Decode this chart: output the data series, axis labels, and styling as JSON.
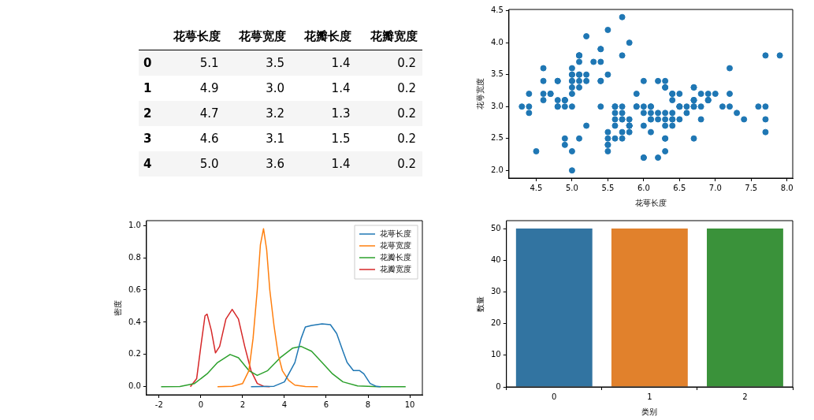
{
  "chart_data": [
    {
      "type": "heatmap",
      "categories": [
        "花萼长度",
        "花萼宽度",
        "花瓣长度",
        "花瓣宽度"
      ],
      "y_categories": [
        "0",
        "1",
        "2",
        "3",
        "4"
      ],
      "cells": [
        [
          5.1,
          3.5,
          1.4,
          0.2
        ],
        [
          4.9,
          3.0,
          1.4,
          0.2
        ],
        [
          4.7,
          3.2,
          1.3,
          0.2
        ],
        [
          4.6,
          3.1,
          1.5,
          0.2
        ],
        [
          5.0,
          3.6,
          1.4,
          0.2
        ]
      ],
      "cell_labels": [
        [
          "5.1",
          "3.5",
          "1.4",
          "0.2"
        ],
        [
          "4.9",
          "3.0",
          "1.4",
          "0.2"
        ],
        [
          "4.7",
          "3.2",
          "1.3",
          "0.2"
        ],
        [
          "4.6",
          "3.1",
          "1.5",
          "0.2"
        ],
        [
          "5.0",
          "3.6",
          "1.4",
          "0.2"
        ]
      ],
      "data_labels": true
    },
    {
      "type": "scatter",
      "xlabel": "花萼长度",
      "ylabel": "花萼宽度",
      "marker": "circle",
      "grid": false,
      "legend": false,
      "xlim": [
        4.12,
        8.08
      ],
      "ylim": [
        1.88,
        4.52
      ],
      "xticks": [
        {
          "value": 4.5,
          "label": "4.5"
        },
        {
          "value": 5,
          "label": "5.0"
        },
        {
          "value": 5.5,
          "label": "5.5"
        },
        {
          "value": 6,
          "label": "6.0"
        },
        {
          "value": 6.5,
          "label": "6.5"
        },
        {
          "value": 7,
          "label": "7.0"
        },
        {
          "value": 7.5,
          "label": "7.5"
        },
        {
          "value": 8,
          "label": "8.0"
        }
      ],
      "yticks": [
        {
          "value": 2,
          "label": "2.0"
        },
        {
          "value": 2.5,
          "label": "2.5"
        },
        {
          "value": 3,
          "label": "3.0"
        },
        {
          "value": 3.5,
          "label": "3.5"
        },
        {
          "value": 4,
          "label": "4.0"
        },
        {
          "value": 4.5,
          "label": "4.5"
        }
      ],
      "series": [
        {
          "color": "#1f77b4",
          "x": [
            5.1,
            4.9,
            4.7,
            4.6,
            5.0,
            5.4,
            4.6,
            5.0,
            4.4,
            4.9,
            5.4,
            4.8,
            4.8,
            4.3,
            5.8,
            5.7,
            5.4,
            5.1,
            5.7,
            5.1,
            5.4,
            5.1,
            4.6,
            5.1,
            4.8,
            5.0,
            5.0,
            5.2,
            5.2,
            4.7,
            4.8,
            5.4,
            5.2,
            5.5,
            4.9,
            5.0,
            5.5,
            4.9,
            4.4,
            5.1,
            5.0,
            4.5,
            4.4,
            5.0,
            5.1,
            4.8,
            5.1,
            4.6,
            5.3,
            5.0,
            7.0,
            6.4,
            6.9,
            5.5,
            6.5,
            5.7,
            6.3,
            4.9,
            6.6,
            5.2,
            5.0,
            5.9,
            6.0,
            6.1,
            5.6,
            6.7,
            5.6,
            5.8,
            6.2,
            5.6,
            5.9,
            6.1,
            6.3,
            6.1,
            6.4,
            6.6,
            6.8,
            6.7,
            6.0,
            5.7,
            5.5,
            5.5,
            5.8,
            6.0,
            5.4,
            6.0,
            6.7,
            6.3,
            5.6,
            5.5,
            5.5,
            6.1,
            5.8,
            5.0,
            5.6,
            5.7,
            5.7,
            6.2,
            5.1,
            5.7,
            6.3,
            5.8,
            7.1,
            6.3,
            6.5,
            7.6,
            4.9,
            7.3,
            6.7,
            7.2,
            6.5,
            6.4,
            6.8,
            5.7,
            5.8,
            6.4,
            6.5,
            7.7,
            7.7,
            6.0,
            6.9,
            5.6,
            7.7,
            6.3,
            6.7,
            7.2,
            6.2,
            6.1,
            6.4,
            7.2,
            7.4,
            7.9,
            6.4,
            6.3,
            6.1,
            7.7,
            6.3,
            6.4,
            6.0,
            6.9,
            6.7,
            6.9,
            5.8,
            6.8,
            6.7,
            6.7,
            6.3,
            6.5,
            6.2,
            5.9
          ],
          "values": [
            3.5,
            3.0,
            3.2,
            3.1,
            3.6,
            3.9,
            3.4,
            3.4,
            2.9,
            3.1,
            3.7,
            3.4,
            3.0,
            3.0,
            4.0,
            4.4,
            3.9,
            3.5,
            3.8,
            3.8,
            3.4,
            3.7,
            3.6,
            3.3,
            3.4,
            3.0,
            3.4,
            3.5,
            3.4,
            3.2,
            3.1,
            3.4,
            4.1,
            4.2,
            3.1,
            3.2,
            3.5,
            3.1,
            3.0,
            3.4,
            3.5,
            2.3,
            3.2,
            3.5,
            3.8,
            3.0,
            3.8,
            3.2,
            3.7,
            3.3,
            3.2,
            3.2,
            3.1,
            2.3,
            2.8,
            2.8,
            3.3,
            2.4,
            2.9,
            2.7,
            2.0,
            3.0,
            2.2,
            2.9,
            2.9,
            3.1,
            3.0,
            2.7,
            2.2,
            2.5,
            3.2,
            2.8,
            2.5,
            2.8,
            2.9,
            3.0,
            2.8,
            3.0,
            2.9,
            2.6,
            2.4,
            2.4,
            2.7,
            2.7,
            3.0,
            3.4,
            3.1,
            2.3,
            3.0,
            2.5,
            2.6,
            3.0,
            2.6,
            2.3,
            2.7,
            3.0,
            2.9,
            2.9,
            2.5,
            2.8,
            3.3,
            2.7,
            3.0,
            2.9,
            3.0,
            3.0,
            2.5,
            2.9,
            2.5,
            3.6,
            3.2,
            2.7,
            3.0,
            2.5,
            2.8,
            3.2,
            3.0,
            3.8,
            2.6,
            2.2,
            3.2,
            2.8,
            2.8,
            2.7,
            3.3,
            3.2,
            2.8,
            3.0,
            2.8,
            3.0,
            2.8,
            3.8,
            2.8,
            2.8,
            2.6,
            3.0,
            3.4,
            3.1,
            3.0,
            3.1,
            3.1,
            3.1,
            2.7,
            3.2,
            3.3,
            3.0,
            2.5,
            3.0,
            3.4,
            3.0
          ]
        }
      ]
    },
    {
      "type": "line",
      "ylabel": "密度",
      "marker": "none",
      "line_style": "solid",
      "grid": false,
      "legend": "top right",
      "xlim": [
        -2.6,
        10.6
      ],
      "ylim": [
        -0.05,
        1.03
      ],
      "xticks": [
        -2,
        0,
        2,
        4,
        6,
        8,
        10
      ],
      "yticks": [
        {
          "value": 0,
          "label": "0.0"
        },
        {
          "value": 0.2,
          "label": "0.2"
        },
        {
          "value": 0.4,
          "label": "0.4"
        },
        {
          "value": 0.6,
          "label": "0.6"
        },
        {
          "value": 0.8,
          "label": "0.8"
        },
        {
          "value": 1,
          "label": "1.0"
        }
      ],
      "series": [
        {
          "name": "花萼长度",
          "color": "#1f77b4",
          "x": [
            2.4,
            3.5,
            4.0,
            4.5,
            4.8,
            5.0,
            5.3,
            5.8,
            6.2,
            6.5,
            6.8,
            7.0,
            7.3,
            7.6,
            7.8,
            8.1,
            8.4,
            8.6
          ],
          "values": [
            0,
            0.003,
            0.03,
            0.15,
            0.3,
            0.37,
            0.38,
            0.39,
            0.385,
            0.33,
            0.22,
            0.15,
            0.1,
            0.1,
            0.08,
            0.02,
            0.002,
            0
          ]
        },
        {
          "name": "花萼宽度",
          "color": "#ff7f0e",
          "x": [
            0.8,
            1.5,
            2.0,
            2.3,
            2.5,
            2.7,
            2.85,
            3.0,
            3.15,
            3.3,
            3.5,
            3.7,
            3.9,
            4.2,
            4.5,
            5.0,
            5.6
          ],
          "values": [
            0,
            0.003,
            0.02,
            0.1,
            0.3,
            0.6,
            0.88,
            0.98,
            0.85,
            0.6,
            0.38,
            0.2,
            0.1,
            0.04,
            0.01,
            0.001,
            0
          ]
        },
        {
          "name": "花瓣长度",
          "color": "#2ca02c",
          "x": [
            -1.9,
            -1,
            -0.3,
            0.3,
            0.8,
            1.4,
            1.8,
            2.3,
            2.7,
            3.2,
            3.8,
            4.4,
            4.8,
            5.3,
            5.8,
            6.3,
            6.8,
            7.5,
            8.5,
            9.8
          ],
          "values": [
            0,
            0.001,
            0.02,
            0.08,
            0.15,
            0.2,
            0.18,
            0.1,
            0.07,
            0.1,
            0.18,
            0.24,
            0.25,
            0.22,
            0.15,
            0.08,
            0.03,
            0.005,
            0,
            0
          ]
        },
        {
          "name": "花瓣宽度",
          "color": "#d62728",
          "x": [
            -0.5,
            -0.2,
            0,
            0.2,
            0.3,
            0.5,
            0.7,
            0.9,
            1.2,
            1.5,
            1.8,
            2.1,
            2.4,
            2.7,
            3.0,
            3.3
          ],
          "values": [
            0,
            0.05,
            0.25,
            0.44,
            0.45,
            0.35,
            0.21,
            0.25,
            0.42,
            0.48,
            0.42,
            0.25,
            0.1,
            0.02,
            0.003,
            0
          ]
        }
      ]
    },
    {
      "type": "bar",
      "xlabel": "类别",
      "ylabel": "数量",
      "grid": false,
      "legend": false,
      "categories": [
        "0",
        "1",
        "2"
      ],
      "values": [
        50,
        50,
        50
      ],
      "colors": [
        "#3274a1",
        "#e1812c",
        "#3a923a"
      ],
      "ylim": [
        0,
        52.5
      ],
      "yticks": [
        0,
        10,
        20,
        30,
        40,
        50
      ]
    }
  ]
}
